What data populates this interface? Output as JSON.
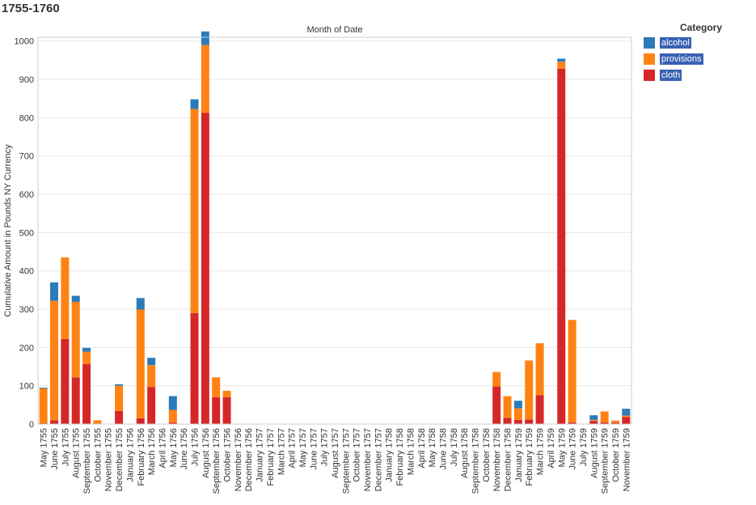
{
  "title": "1755-1760",
  "legend": {
    "title": "Category",
    "items": [
      {
        "label": "alcohol",
        "color": "#2b7bba"
      },
      {
        "label": "provisions",
        "color": "#ff8314"
      },
      {
        "label": "cloth",
        "color": "#d62728"
      }
    ]
  },
  "chart_data": {
    "type": "bar",
    "stacked": true,
    "title": "1755-1760",
    "column_header": "Month of Date",
    "ylabel": "Cumulative Amount in Pounds NY Currency",
    "xlabel": "",
    "ylim": [
      0,
      1010
    ],
    "yticks": [
      0,
      100,
      200,
      300,
      400,
      500,
      600,
      700,
      800,
      900,
      1000
    ],
    "categories": [
      "May 1755",
      "June 1755",
      "July 1755",
      "August 1755",
      "September 1755",
      "October 1755",
      "November 1755",
      "December 1755",
      "January 1756",
      "February 1756",
      "March 1756",
      "April 1756",
      "May 1756",
      "June 1756",
      "July 1756",
      "August 1756",
      "September 1756",
      "October 1756",
      "November 1756",
      "December 1756",
      "January 1757",
      "February 1757",
      "March 1757",
      "April 1757",
      "May 1757",
      "June 1757",
      "July 1757",
      "August 1757",
      "September 1757",
      "October 1757",
      "November 1757",
      "December 1757",
      "January 1758",
      "February 1758",
      "March 1758",
      "April 1758",
      "May 1758",
      "June 1758",
      "July 1758",
      "August 1758",
      "September 1758",
      "October 1758",
      "November 1758",
      "December 1758",
      "January 1759",
      "February 1759",
      "March 1759",
      "April 1759",
      "May 1759",
      "June 1759",
      "July 1759",
      "August 1759",
      "September 1759",
      "October 1759",
      "November 1759"
    ],
    "series": [
      {
        "name": "cloth",
        "color": "#d62728",
        "values": [
          2,
          10,
          222,
          122,
          157,
          0,
          0,
          34,
          0,
          15,
          97,
          0,
          4,
          0,
          290,
          813,
          70,
          70,
          0,
          0,
          0,
          0,
          0,
          0,
          0,
          0,
          0,
          0,
          0,
          0,
          0,
          0,
          0,
          0,
          0,
          0,
          0,
          0,
          0,
          0,
          0,
          0,
          98,
          16,
          11,
          12,
          75,
          0,
          928,
          4,
          0,
          8,
          4,
          3,
          18
        ]
      },
      {
        "name": "provisions",
        "color": "#ff8314",
        "values": [
          91,
          312,
          213,
          197,
          32,
          10,
          0,
          66,
          0,
          284,
          57,
          0,
          33,
          0,
          533,
          177,
          52,
          17,
          0,
          0,
          0,
          0,
          0,
          0,
          0,
          0,
          0,
          0,
          0,
          0,
          0,
          0,
          0,
          0,
          0,
          0,
          0,
          0,
          0,
          0,
          0,
          0,
          38,
          57,
          30,
          154,
          136,
          0,
          18,
          268,
          0,
          3,
          29,
          6,
          4
        ]
      },
      {
        "name": "alcohol",
        "color": "#2b7bba",
        "values": [
          2,
          48,
          0,
          16,
          10,
          0,
          0,
          4,
          0,
          30,
          19,
          0,
          36,
          0,
          25,
          35,
          0,
          0,
          0,
          0,
          0,
          0,
          0,
          0,
          0,
          0,
          0,
          0,
          0,
          0,
          0,
          0,
          0,
          0,
          0,
          0,
          0,
          0,
          0,
          0,
          0,
          0,
          0,
          0,
          20,
          0,
          0,
          0,
          8,
          0,
          0,
          12,
          0,
          0,
          18
        ]
      }
    ]
  }
}
